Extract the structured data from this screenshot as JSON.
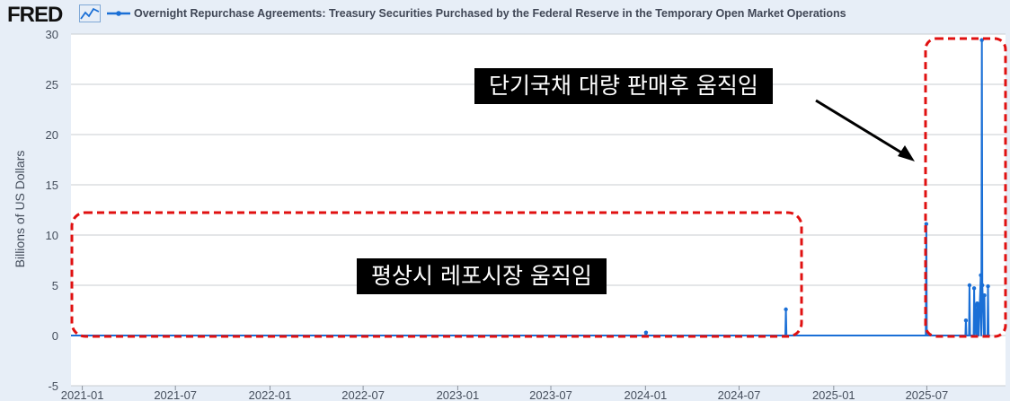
{
  "header": {
    "logo_text": "FRED",
    "logo_icon": "line-chart-icon",
    "series_title": "Overnight Repurchase Agreements: Treasury Securities Purchased by the Federal Reserve in the Temporary Open Market Operations"
  },
  "colors": {
    "series": "#1a6fd6",
    "annotation_box_border": "#e01010",
    "background": "#e7eef7",
    "plot_background": "#ffffff",
    "grid": "#c8ccd2"
  },
  "annotations": {
    "normal_label": "평상시 레포시장 움직임",
    "recent_label": "단기국채 대량 판매후 움직임"
  },
  "chart_data": {
    "type": "line",
    "title": "Overnight Repurchase Agreements: Treasury Securities Purchased by the Federal Reserve in the Temporary Open Market Operations",
    "xlabel": "",
    "ylabel": "Billions of US Dollars",
    "ylim": [
      -5,
      30
    ],
    "yticks": [
      -5,
      0,
      5,
      10,
      15,
      20,
      25,
      30
    ],
    "xlim": [
      "2020-12-10",
      "2025-12-01"
    ],
    "xticks": [
      "2021-01",
      "2021-07",
      "2022-01",
      "2022-07",
      "2023-01",
      "2023-07",
      "2024-01",
      "2024-07",
      "2025-01",
      "2025-07"
    ],
    "grid": true,
    "legend": "top-left",
    "series": [
      {
        "name": "Overnight Repurchase Agreements: Treasury Securities Purchased by the Federal Reserve in the Temporary Open Market Operations",
        "points": [
          {
            "x": "2020-12-10",
            "y": 0.0
          },
          {
            "x": "2020-12-31",
            "y": 0.0
          },
          {
            "x": "2023-12-31",
            "y": 0.0
          },
          {
            "x": "2024-01-02",
            "y": 0.3
          },
          {
            "x": "2024-01-03",
            "y": 0.0
          },
          {
            "x": "2024-09-29",
            "y": 0.0
          },
          {
            "x": "2024-09-30",
            "y": 2.6
          },
          {
            "x": "2024-10-01",
            "y": 0.0
          },
          {
            "x": "2025-06-29",
            "y": 0.0
          },
          {
            "x": "2025-06-30",
            "y": 11.1
          },
          {
            "x": "2025-07-01",
            "y": 0.0
          },
          {
            "x": "2025-09-14",
            "y": 0.0
          },
          {
            "x": "2025-09-15",
            "y": 1.5
          },
          {
            "x": "2025-09-16",
            "y": 0.0
          },
          {
            "x": "2025-09-21",
            "y": 0.0
          },
          {
            "x": "2025-09-22",
            "y": 5.0
          },
          {
            "x": "2025-09-23",
            "y": 0.0
          },
          {
            "x": "2025-09-30",
            "y": 0.0
          },
          {
            "x": "2025-10-01",
            "y": 4.7
          },
          {
            "x": "2025-10-02",
            "y": 0.0
          },
          {
            "x": "2025-10-03",
            "y": 3.0
          },
          {
            "x": "2025-10-06",
            "y": 0.0
          },
          {
            "x": "2025-10-07",
            "y": 3.2
          },
          {
            "x": "2025-10-08",
            "y": 0.0
          },
          {
            "x": "2025-10-09",
            "y": 3.0
          },
          {
            "x": "2025-10-10",
            "y": 0.0
          },
          {
            "x": "2025-10-14",
            "y": 6.0
          },
          {
            "x": "2025-10-15",
            "y": 0.0
          },
          {
            "x": "2025-10-16",
            "y": 29.4
          },
          {
            "x": "2025-10-17",
            "y": 5.0
          },
          {
            "x": "2025-10-20",
            "y": 0.0
          },
          {
            "x": "2025-10-21",
            "y": 4.0
          },
          {
            "x": "2025-10-22",
            "y": 0.0
          },
          {
            "x": "2025-10-27",
            "y": 0.0
          },
          {
            "x": "2025-10-28",
            "y": 4.9
          },
          {
            "x": "2025-10-29",
            "y": 0.0
          },
          {
            "x": "2025-11-01",
            "y": 0.0
          }
        ]
      }
    ]
  }
}
